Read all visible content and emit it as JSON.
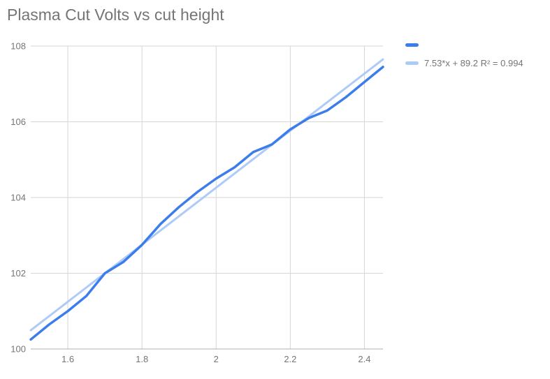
{
  "chart": {
    "title": "Plasma Cut Volts vs cut height"
  },
  "legend": {
    "items": [
      {
        "label": "",
        "swatch": "series"
      },
      {
        "label": "7.53*x + 89.2 R² = 0.994",
        "swatch": "trendline"
      }
    ]
  },
  "chart_data": {
    "type": "line",
    "title": "Plasma Cut Volts vs cut height",
    "xlabel": "",
    "ylabel": "",
    "xlim": [
      1.5,
      2.45
    ],
    "ylim": [
      100,
      108
    ],
    "grid": true,
    "legend_position": "top-right",
    "x_ticks": [
      {
        "value": 1.6,
        "label": "1.6"
      },
      {
        "value": 1.8,
        "label": "1.8"
      },
      {
        "value": 2.0,
        "label": "2"
      },
      {
        "value": 2.2,
        "label": "2.2"
      },
      {
        "value": 2.4,
        "label": "2.4"
      }
    ],
    "y_ticks": [
      {
        "value": 100,
        "label": "100"
      },
      {
        "value": 102,
        "label": "102"
      },
      {
        "value": 104,
        "label": "104"
      },
      {
        "value": 106,
        "label": "106"
      },
      {
        "value": 108,
        "label": "108"
      }
    ],
    "series": [
      {
        "name": "",
        "x": [
          1.5,
          1.55,
          1.6,
          1.65,
          1.7,
          1.75,
          1.8,
          1.85,
          1.9,
          1.95,
          2.0,
          2.05,
          2.1,
          2.15,
          2.2,
          2.25,
          2.3,
          2.35,
          2.4,
          2.45
        ],
        "values": [
          100.25,
          100.65,
          101.0,
          101.4,
          102.0,
          102.3,
          102.75,
          103.3,
          103.75,
          104.15,
          104.5,
          104.8,
          105.2,
          105.4,
          105.8,
          106.1,
          106.3,
          106.65,
          107.05,
          107.45
        ]
      }
    ],
    "trendline": {
      "slope": 7.53,
      "intercept": 89.2,
      "r_squared": 0.994,
      "equation_label": "7.53*x + 89.2 R² = 0.994"
    },
    "colors": {
      "series": "#3D7DEB",
      "trendline": "#AECBF8",
      "gridline": "#D6D6D6",
      "axis_line": "#AFAFAF",
      "tick_label": "#757575",
      "title": "#757575"
    }
  }
}
